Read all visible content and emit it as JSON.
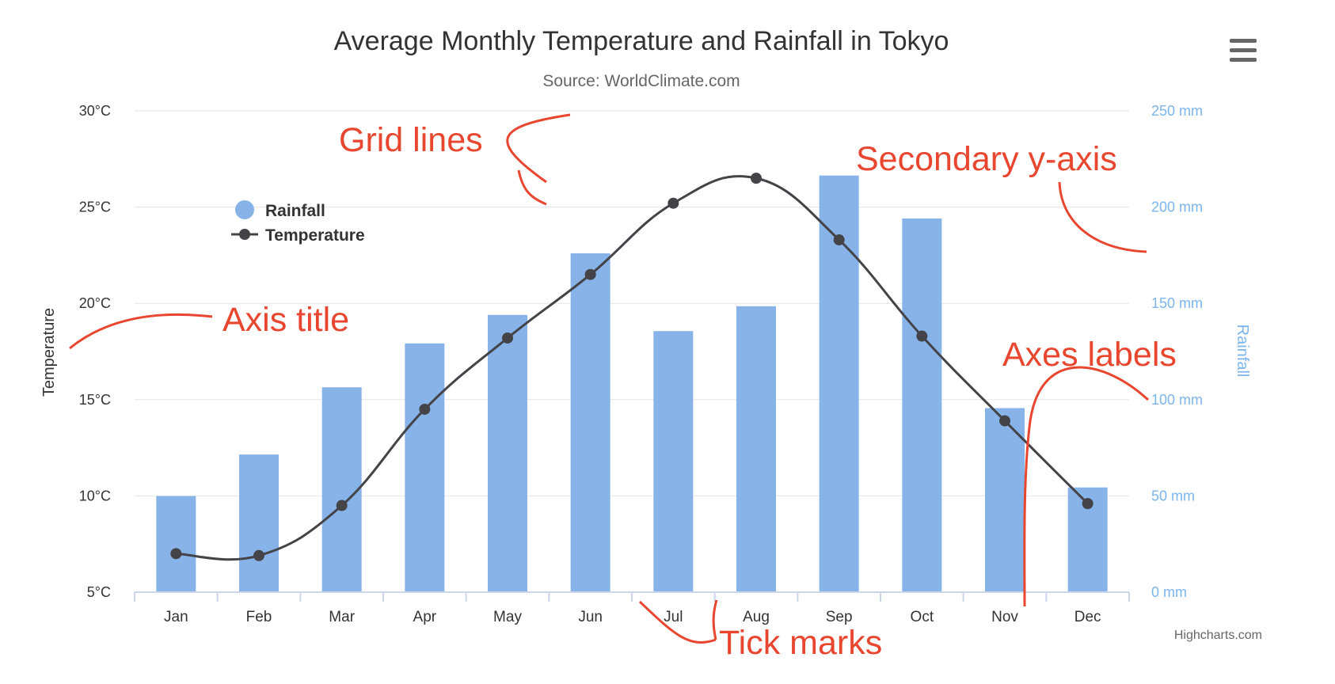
{
  "chart_data": {
    "type": "bar",
    "title": "Average Monthly Temperature and Rainfall in Tokyo",
    "subtitle": "Source: WorldClimate.com",
    "categories": [
      "Jan",
      "Feb",
      "Mar",
      "Apr",
      "May",
      "Jun",
      "Jul",
      "Aug",
      "Sep",
      "Oct",
      "Nov",
      "Dec"
    ],
    "series": [
      {
        "name": "Rainfall",
        "type": "bar",
        "axis": "right",
        "color": "#88b3e8",
        "values": [
          49.9,
          71.5,
          106.4,
          129.2,
          144.0,
          176.0,
          135.6,
          148.5,
          216.4,
          194.1,
          95.6,
          54.4
        ]
      },
      {
        "name": "Temperature",
        "type": "line",
        "axis": "left",
        "color": "#434348",
        "values": [
          7.0,
          6.9,
          9.5,
          14.5,
          18.2,
          21.5,
          25.2,
          26.5,
          23.3,
          18.3,
          13.9,
          9.6
        ]
      }
    ],
    "y_left": {
      "title": "Temperature",
      "ticks": [
        "5°C",
        "10°C",
        "15°C",
        "20°C",
        "25°C",
        "30°C"
      ],
      "range": [
        5,
        30
      ]
    },
    "y_right": {
      "title": "Rainfall",
      "ticks": [
        "0 mm",
        "50 mm",
        "100 mm",
        "150 mm",
        "200 mm",
        "250 mm"
      ],
      "range": [
        0,
        250
      ],
      "color": "#7cb5ec"
    },
    "grid": true,
    "legend_placement": "top-left"
  },
  "credits": "Highcharts.com",
  "annotations": [
    {
      "id": "grid-lines",
      "text": "Grid lines"
    },
    {
      "id": "secondary-y-axis",
      "text": "Secondary y-axis"
    },
    {
      "id": "axis-title",
      "text": "Axis title"
    },
    {
      "id": "axes-labels",
      "text": "Axes labels"
    },
    {
      "id": "tick-marks",
      "text": "Tick marks"
    }
  ],
  "colors": {
    "annotation": "#e8462f",
    "grid": "#e6e6e6",
    "axis_line": "#ccd6eb"
  },
  "menu_icon": "hamburger-menu-icon"
}
